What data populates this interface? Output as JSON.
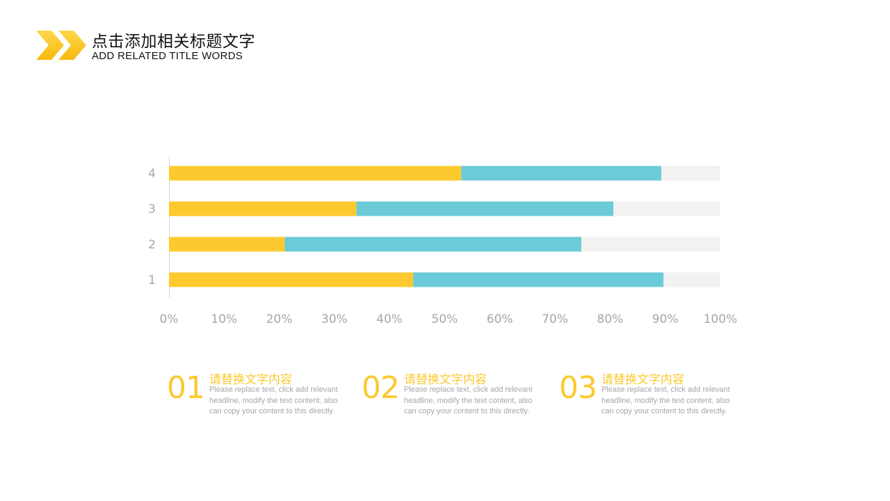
{
  "header": {
    "title_cn": "点击添加相关标题文字",
    "title_en": "ADD RELATED TITLE WORDS",
    "logo_icon": "double-chevron-icon"
  },
  "colors": {
    "accent": "#fbc930",
    "series_1": "#fdc92e",
    "series_2": "#6ccbd8",
    "series_3": "#f2f2f2",
    "axis_text": "#a6a6a6",
    "axis_line": "#d9d9d9"
  },
  "chart_data": {
    "type": "bar",
    "orientation": "horizontal",
    "stacked": "percent",
    "categories": [
      "1",
      "2",
      "3",
      "4"
    ],
    "series": [
      {
        "values": [
          44.3,
          21.0,
          34.0,
          53.0
        ]
      },
      {
        "values": [
          45.4,
          53.8,
          46.6,
          36.3
        ]
      },
      {
        "values": [
          10.3,
          25.2,
          19.4,
          10.7
        ]
      }
    ],
    "x_ticks": [
      "0%",
      "10%",
      "20%",
      "30%",
      "40%",
      "50%",
      "60%",
      "70%",
      "80%",
      "90%",
      "100%"
    ],
    "xlim": [
      0,
      100
    ],
    "grid": false,
    "legend": "none"
  },
  "cards": [
    {
      "number": "01",
      "heading": "请替换文字内容",
      "body": "Please replace text, click add relevant headline, modify the text content, also can copy your content to this directly."
    },
    {
      "number": "02",
      "heading": "请替换文字内容",
      "body": "Please replace text, click add relevant headline, modify the text content, also can copy your content to this directly."
    },
    {
      "number": "03",
      "heading": "请替换文字内容",
      "body": "Please replace text, click add relevant headline, modify the text content, also can copy your content to this directly."
    }
  ]
}
